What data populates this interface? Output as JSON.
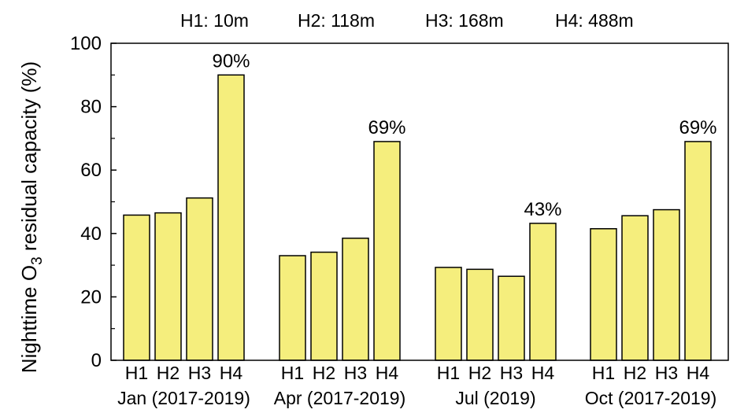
{
  "legend": [
    "H1: 10m",
    "H2: 118m",
    "H3: 168m",
    "H4: 488m"
  ],
  "chart_data": {
    "type": "bar",
    "ylabel": {
      "prefix": "Nighttime O",
      "sub": "3",
      "suffix": " residual capacity (%)"
    },
    "ylim": [
      0,
      100
    ],
    "yticks": [
      0,
      20,
      40,
      60,
      80,
      100
    ],
    "series_categories": [
      "H1",
      "H2",
      "H3",
      "H4"
    ],
    "groups": [
      {
        "name": "Jan (2017-2019)",
        "values": [
          45.8,
          46.5,
          51.2,
          90
        ],
        "label": "90%"
      },
      {
        "name": "Apr (2017-2019)",
        "values": [
          33,
          34.1,
          38.5,
          69
        ],
        "label": "69%"
      },
      {
        "name": "Jul (2019)",
        "values": [
          29.3,
          28.7,
          26.5,
          43.2
        ],
        "label": "43%"
      },
      {
        "name": "Oct (2017-2019)",
        "values": [
          41.5,
          45.6,
          47.5,
          69
        ],
        "label": "69%"
      }
    ],
    "bar_color": "#f5ee7d",
    "grid": false
  }
}
